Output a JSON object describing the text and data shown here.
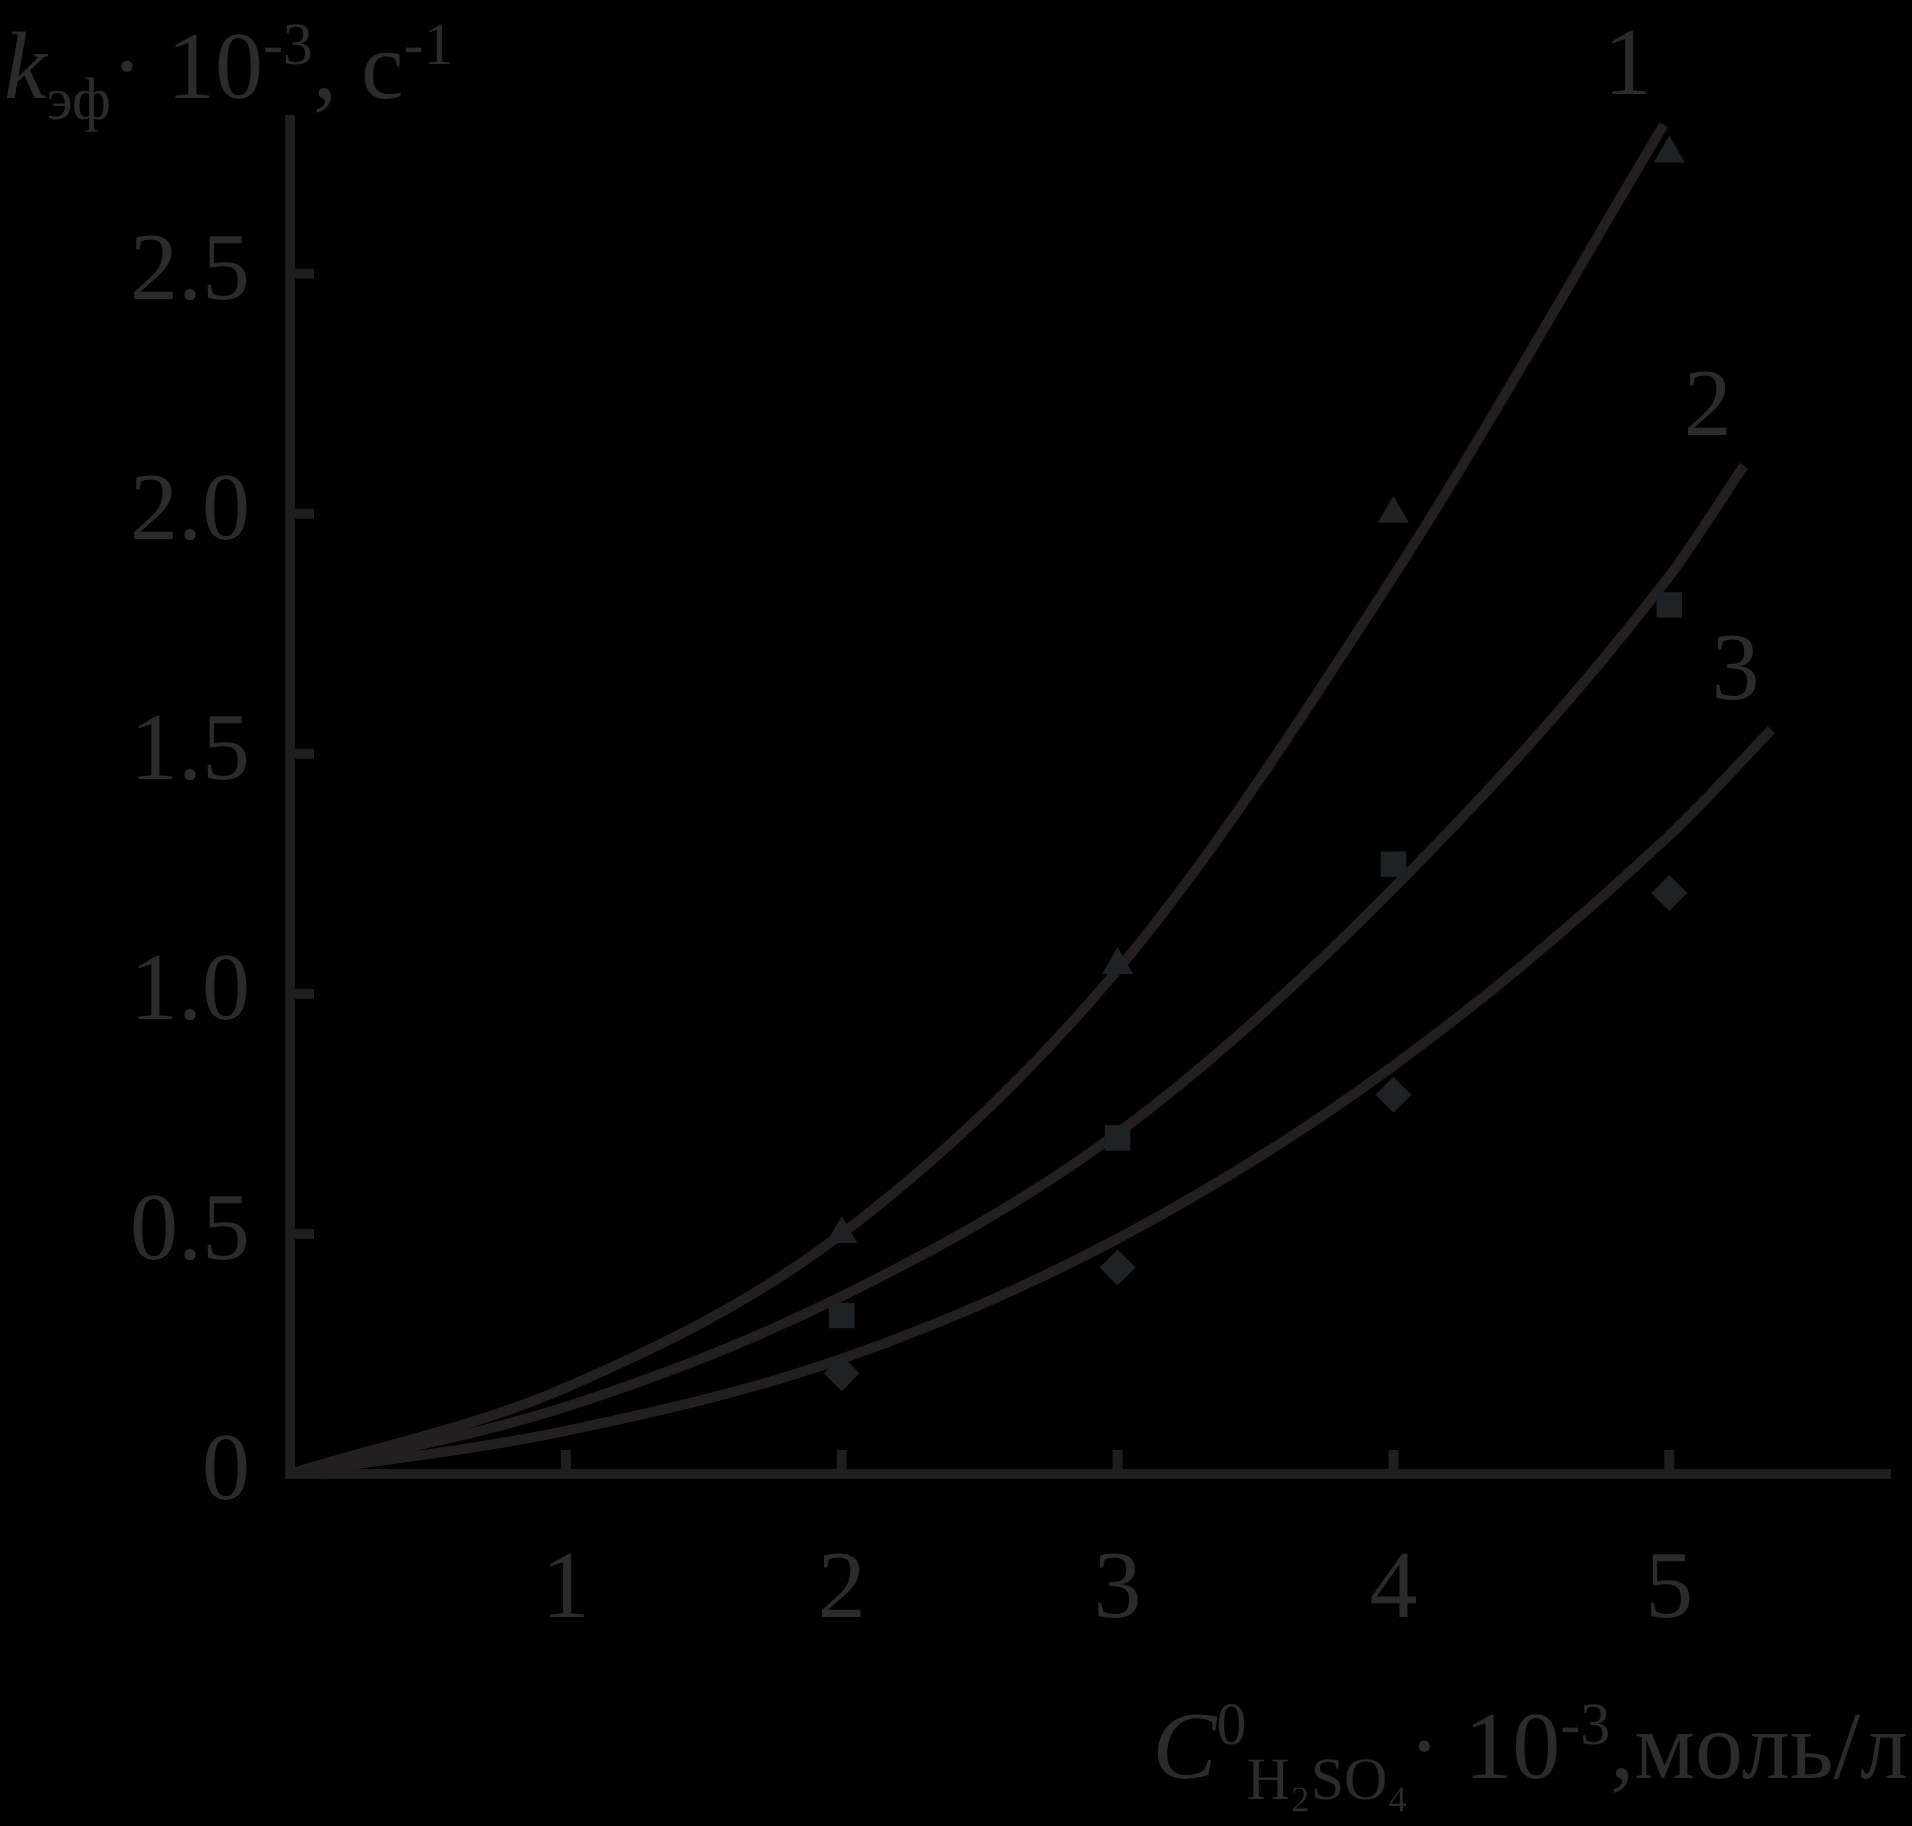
{
  "chart_data": {
    "type": "line",
    "xlabel": "C$^{0}$$_{H₂SO₄}$· 10$^{-3}$,моль/л",
    "ylabel": "k$_{эф}$· 10$^{-3}$, с$^{-1}$",
    "xlim": [
      0,
      5.8
    ],
    "xticks": [
      1,
      2,
      3,
      4,
      5
    ],
    "ylim": [
      0,
      2.82
    ],
    "yticks": [
      0,
      0.5,
      {
        "value": 1,
        "label": "1.0"
      },
      1.5,
      {
        "value": 2,
        "label": "2.0"
      },
      2.5
    ],
    "legend": false,
    "series": [
      {
        "name": "1",
        "color": "#231f20",
        "marker": "none",
        "x": [
          0,
          1,
          2,
          3,
          4,
          4.98
        ],
        "values": [
          0,
          0.18,
          0.5,
          1.05,
          1.87,
          2.81
        ]
      },
      {
        "name": "2",
        "color": "#231f20",
        "marker": "none",
        "x": [
          0,
          1,
          2,
          3,
          4,
          5,
          5.27
        ],
        "values": [
          0,
          0.14,
          0.37,
          0.71,
          1.22,
          1.87,
          2.1
        ]
      },
      {
        "name": "3",
        "color": "#231f20",
        "marker": "none",
        "x": [
          0,
          1,
          2,
          3,
          4,
          5,
          5.37
        ],
        "values": [
          0,
          0.09,
          0.24,
          0.49,
          0.85,
          1.33,
          1.55
        ]
      },
      {
        "type": "scatter",
        "color": "#1f2224",
        "marker": "triangle",
        "x": [
          2,
          3,
          4,
          5
        ],
        "values": [
          0.5,
          1.06,
          2.0,
          2.75
        ]
      },
      {
        "type": "scatter",
        "color": "#1f2224",
        "marker": "square",
        "x": [
          2,
          3,
          4,
          5
        ],
        "values": [
          0.33,
          0.7,
          1.27,
          1.81
        ]
      },
      {
        "type": "scatter",
        "color": "#1f2224",
        "marker": "diamond",
        "x": [
          2,
          3,
          4,
          5
        ],
        "values": [
          0.21,
          0.43,
          0.79,
          1.21
        ]
      }
    ]
  }
}
